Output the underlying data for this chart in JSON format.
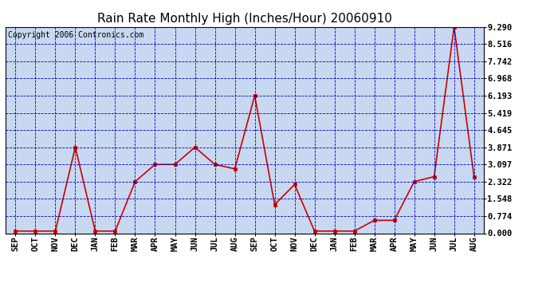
{
  "title": "Rain Rate Monthly High (Inches/Hour) 20060910",
  "copyright": "Copyright 2006 Contronics.com",
  "labels": [
    "SEP",
    "OCT",
    "NOV",
    "DEC",
    "JAN",
    "FEB",
    "MAR",
    "APR",
    "MAY",
    "JUN",
    "JUL",
    "AUG",
    "SEP",
    "OCT",
    "NOV",
    "DEC",
    "JAN",
    "FEB",
    "MAR",
    "APR",
    "MAY",
    "JUN",
    "JUL",
    "AUG"
  ],
  "values": [
    0.097,
    0.097,
    0.097,
    3.871,
    0.097,
    0.097,
    2.322,
    3.097,
    3.097,
    3.871,
    3.097,
    2.9,
    6.193,
    1.29,
    2.193,
    0.097,
    0.097,
    0.097,
    0.581,
    0.581,
    2.322,
    2.548,
    9.29,
    2.548
  ],
  "yticks": [
    0.0,
    0.774,
    1.548,
    2.322,
    3.097,
    3.871,
    4.645,
    5.419,
    6.193,
    6.968,
    7.742,
    8.516,
    9.29
  ],
  "ymax": 9.29,
  "ymin": 0.0,
  "line_color": "#cc0000",
  "marker_color": "#cc0000",
  "bg_color": "#c8d8f0",
  "outer_bg": "#c8d8f0",
  "grid_color": "#0000bb",
  "title_fontsize": 11,
  "copyright_fontsize": 7,
  "tick_fontsize": 7.5
}
